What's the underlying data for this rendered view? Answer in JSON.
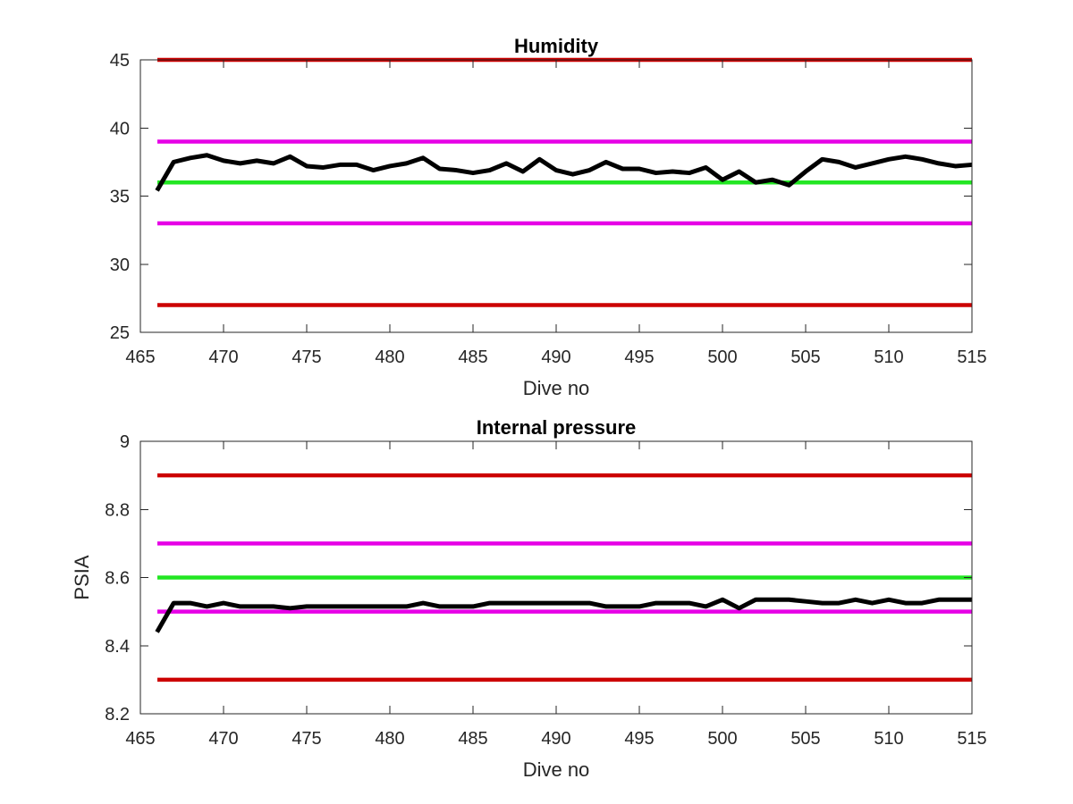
{
  "chart_data": [
    {
      "type": "line",
      "title": "Humidity",
      "xlabel": "Dive no",
      "ylabel": "",
      "xlim": [
        465,
        515
      ],
      "ylim": [
        25,
        45
      ],
      "xticks": [
        "465",
        "470",
        "475",
        "480",
        "485",
        "490",
        "495",
        "500",
        "505",
        "510",
        "515"
      ],
      "yticks": [
        "25",
        "30",
        "35",
        "40",
        "45"
      ],
      "grid": false,
      "reference_lines": [
        {
          "y": 45,
          "color": "#cc0000"
        },
        {
          "y": 39,
          "color": "#e600e6"
        },
        {
          "y": 36,
          "color": "#22e622"
        },
        {
          "y": 33,
          "color": "#e600e6"
        },
        {
          "y": 27,
          "color": "#cc0000"
        }
      ],
      "series": [
        {
          "color": "#000000",
          "x": [
            466,
            467,
            468,
            469,
            470,
            471,
            472,
            473,
            474,
            475,
            476,
            477,
            478,
            479,
            480,
            481,
            482,
            483,
            484,
            485,
            486,
            487,
            488,
            489,
            490,
            491,
            492,
            493,
            494,
            495,
            496,
            497,
            498,
            499,
            500,
            501,
            502,
            503,
            504,
            505,
            506,
            507,
            508,
            509,
            510,
            511,
            512,
            513,
            514,
            515
          ],
          "y": [
            35.4,
            37.5,
            37.8,
            38.0,
            37.6,
            37.4,
            37.6,
            37.4,
            37.9,
            37.2,
            37.1,
            37.3,
            37.3,
            36.9,
            37.2,
            37.4,
            37.8,
            37.0,
            36.9,
            36.7,
            36.9,
            37.4,
            36.8,
            37.7,
            36.9,
            36.6,
            36.9,
            37.5,
            37.0,
            37.0,
            36.7,
            36.8,
            36.7,
            37.1,
            36.2,
            36.8,
            36.0,
            36.2,
            35.8,
            36.8,
            37.7,
            37.5,
            37.1,
            37.4,
            37.7,
            37.9,
            37.7,
            37.4,
            37.2,
            37.3
          ]
        }
      ]
    },
    {
      "type": "line",
      "title": "Internal pressure",
      "xlabel": "Dive no",
      "ylabel": "PSIA",
      "xlim": [
        465,
        515
      ],
      "ylim": [
        8.2,
        9.0
      ],
      "xticks": [
        "465",
        "470",
        "475",
        "480",
        "485",
        "490",
        "495",
        "500",
        "505",
        "510",
        "515"
      ],
      "yticks": [
        "8.2",
        "8.4",
        "8.6",
        "8.8",
        "9"
      ],
      "grid": false,
      "reference_lines": [
        {
          "y": 8.9,
          "color": "#cc0000"
        },
        {
          "y": 8.7,
          "color": "#e600e6"
        },
        {
          "y": 8.6,
          "color": "#22e622"
        },
        {
          "y": 8.5,
          "color": "#e600e6"
        },
        {
          "y": 8.3,
          "color": "#cc0000"
        }
      ],
      "series": [
        {
          "color": "#000000",
          "x": [
            466,
            467,
            468,
            469,
            470,
            471,
            472,
            473,
            474,
            475,
            476,
            477,
            478,
            479,
            480,
            481,
            482,
            483,
            484,
            485,
            486,
            487,
            488,
            489,
            490,
            491,
            492,
            493,
            494,
            495,
            496,
            497,
            498,
            499,
            500,
            501,
            502,
            503,
            504,
            505,
            506,
            507,
            508,
            509,
            510,
            511,
            512,
            513,
            514,
            515
          ],
          "y": [
            8.44,
            8.525,
            8.525,
            8.515,
            8.525,
            8.515,
            8.515,
            8.515,
            8.51,
            8.515,
            8.515,
            8.515,
            8.515,
            8.515,
            8.515,
            8.515,
            8.525,
            8.515,
            8.515,
            8.515,
            8.525,
            8.525,
            8.525,
            8.525,
            8.525,
            8.525,
            8.525,
            8.515,
            8.515,
            8.515,
            8.525,
            8.525,
            8.525,
            8.515,
            8.535,
            8.51,
            8.535,
            8.535,
            8.535,
            8.53,
            8.525,
            8.525,
            8.535,
            8.525,
            8.535,
            8.525,
            8.525,
            8.535,
            8.535,
            8.535
          ]
        }
      ]
    }
  ]
}
